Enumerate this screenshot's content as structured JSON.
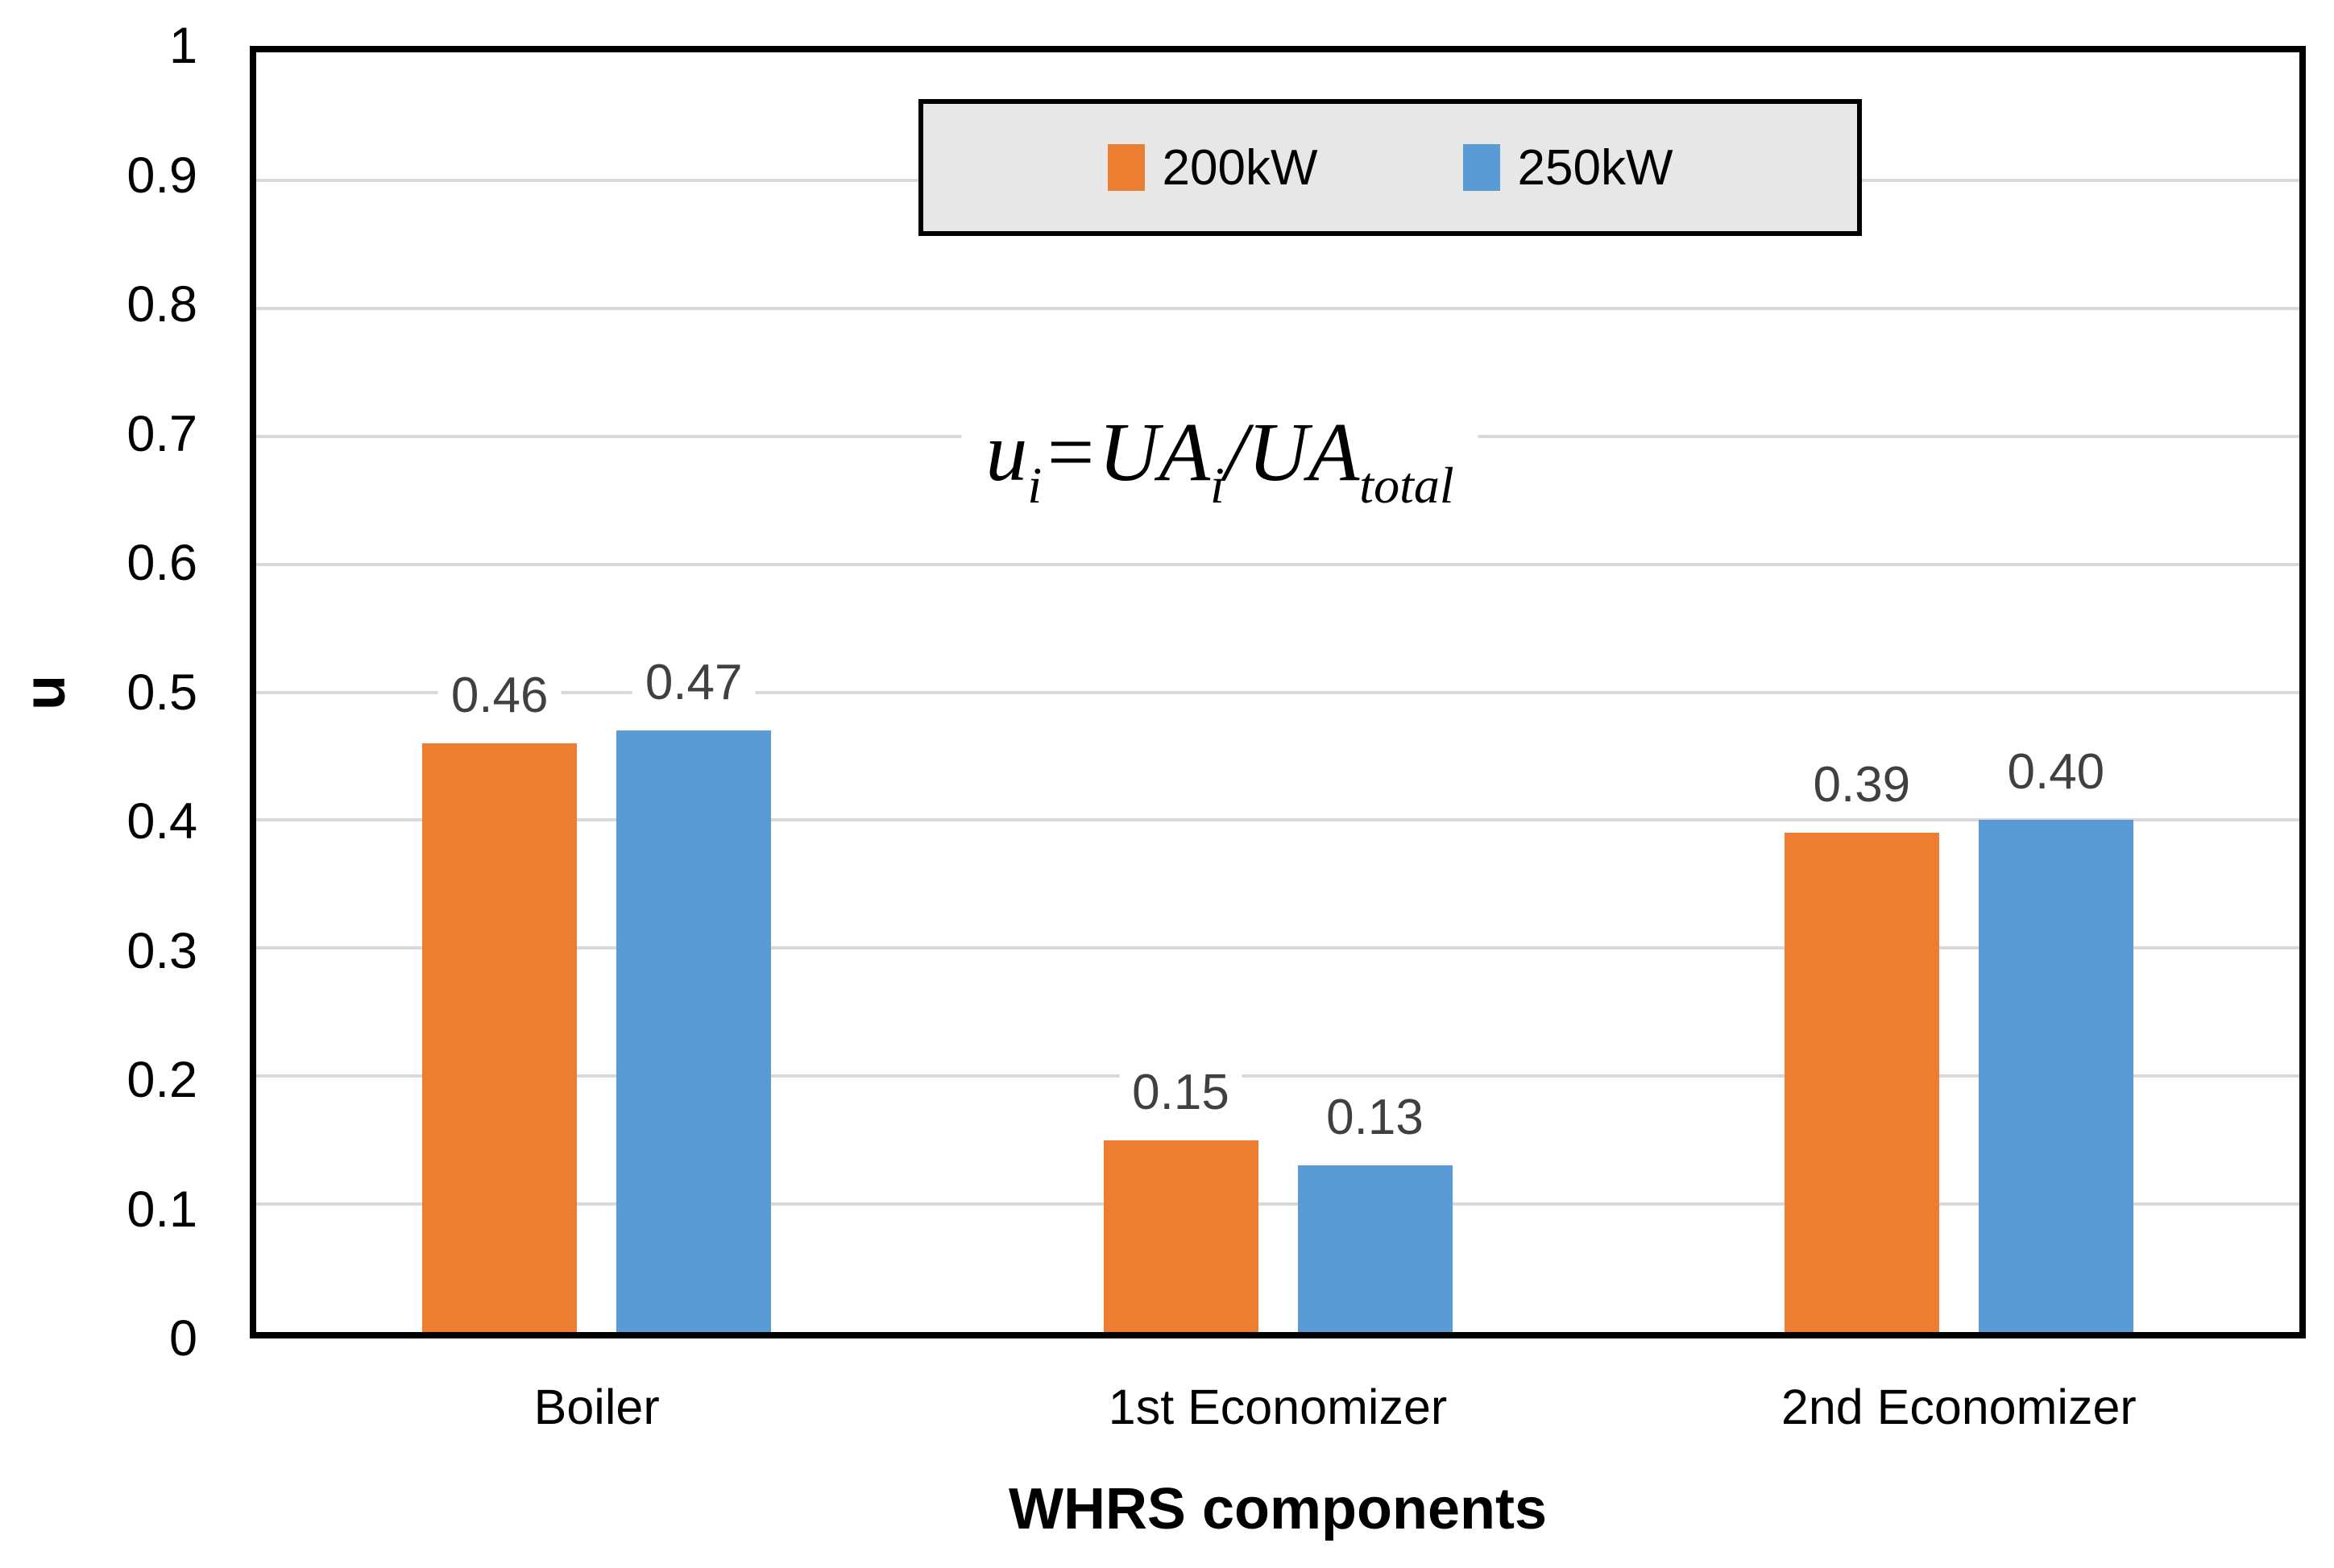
{
  "chart_data": {
    "type": "bar",
    "title": "",
    "xlabel": "WHRS components",
    "ylabel": "u",
    "ylim": [
      0,
      1
    ],
    "ytick_step": 0.1,
    "ytick_labels": [
      "0",
      "0.1",
      "0.2",
      "0.3",
      "0.4",
      "0.5",
      "0.6",
      "0.7",
      "0.8",
      "0.9",
      "1"
    ],
    "grid": true,
    "legend_position": "top-center-inside",
    "categories": [
      "Boiler",
      "1st Economizer",
      "2nd Economizer"
    ],
    "series": [
      {
        "name": "200kW",
        "color": "#ED7D31",
        "values": [
          0.46,
          0.15,
          0.39
        ],
        "value_labels": [
          "0.46",
          "0.15",
          "0.39"
        ]
      },
      {
        "name": "250kW",
        "color": "#5B9BD5",
        "values": [
          0.47,
          0.13,
          0.4
        ],
        "value_labels": [
          "0.47",
          "0.13",
          "0.40"
        ]
      }
    ],
    "annotation": {
      "segments": [
        {
          "text": "u"
        },
        {
          "text": "i",
          "sub": true
        },
        {
          "text": "=UA"
        },
        {
          "text": "i",
          "sub": true
        },
        {
          "text": "/UA"
        },
        {
          "text": "total",
          "sub": true
        }
      ]
    }
  },
  "colors": {
    "gridline": "#D9D9D9",
    "axis_border": "#000000",
    "data_label": "#404040",
    "legend_bg": "#E7E7E7",
    "legend_border": "#000000",
    "background": "#FFFFFF"
  }
}
